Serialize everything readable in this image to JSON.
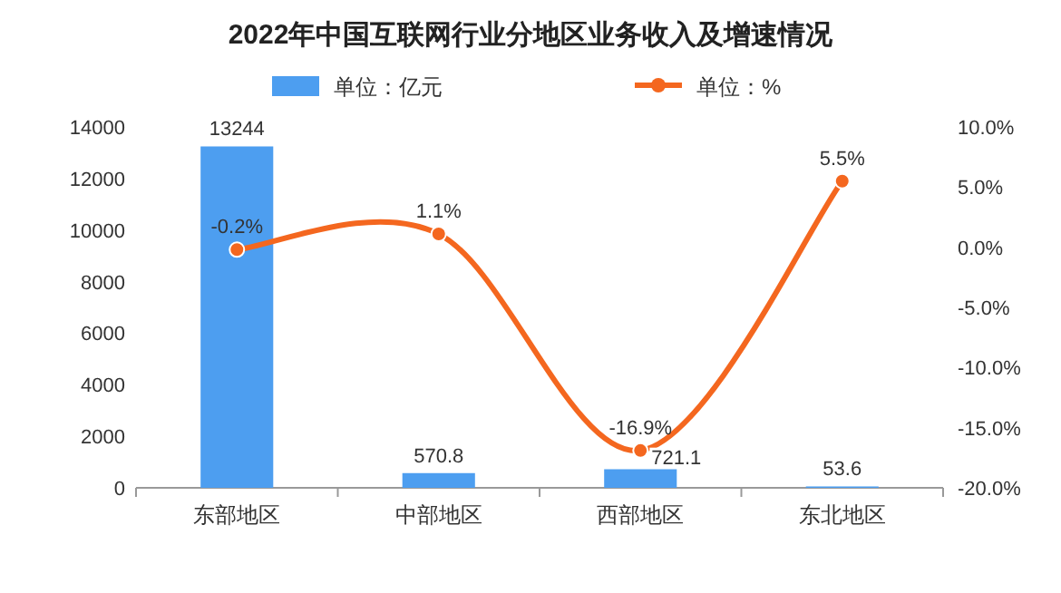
{
  "chart_data": {
    "type": "bar",
    "title": "2022年中国互联网行业分地区业务收入及增速情况",
    "categories": [
      "东部地区",
      "中部地区",
      "西部地区",
      "东北地区"
    ],
    "series": [
      {
        "name": "单位：亿元",
        "color": "#4d9ef0",
        "values": [
          13244,
          570.8,
          721.1,
          53.6
        ],
        "value_labels": [
          "13244",
          "570.8",
          "721.1",
          "53.6"
        ]
      },
      {
        "name": "单位：%",
        "type": "line",
        "axis": "y2",
        "color": "#f4671f",
        "marker": "circle",
        "values": [
          -0.2,
          1.1,
          -16.9,
          5.5
        ],
        "value_labels": [
          "-0.2%",
          "1.1%",
          "-16.9%",
          "5.5%"
        ]
      }
    ],
    "ylim": [
      0,
      14000
    ],
    "yticks": [
      0,
      2000,
      4000,
      6000,
      8000,
      10000,
      12000,
      14000
    ],
    "y2lim": [
      -20,
      10
    ],
    "y2ticks": [
      {
        "value": -20,
        "label": "-20.0%"
      },
      {
        "value": -15,
        "label": "-15.0%"
      },
      {
        "value": -10,
        "label": "-10.0%"
      },
      {
        "value": -5,
        "label": "-5.0%"
      },
      {
        "value": 0,
        "label": "0.0%"
      },
      {
        "value": 5,
        "label": "5.0%"
      },
      {
        "value": 10,
        "label": "10.0%"
      }
    ],
    "legend": "top",
    "grid": false
  }
}
